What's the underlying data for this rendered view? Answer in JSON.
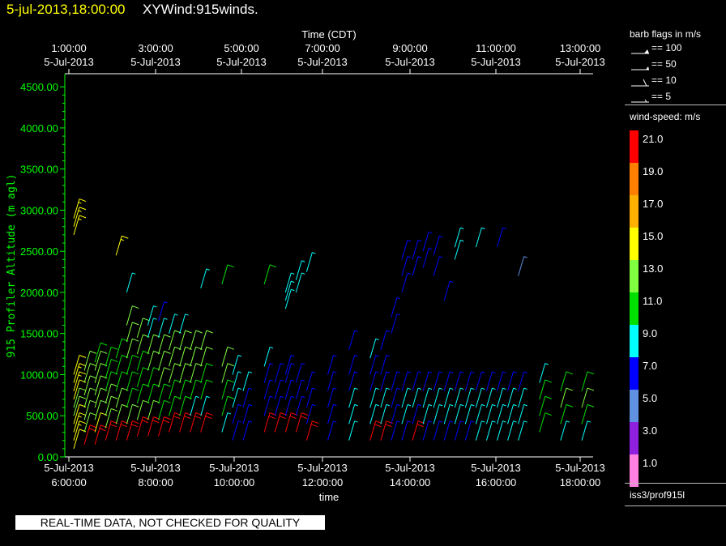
{
  "header": {
    "date_time": "5-jul-2013,18:00:00",
    "product": "XYWind:915winds."
  },
  "sidebar": {
    "barb_title": "barb flags in m/s",
    "barb_entries": [
      {
        "label": "== 100",
        "kind": "triple-flag"
      },
      {
        "label": "== 50",
        "kind": "flag"
      },
      {
        "label": "== 10",
        "kind": "full-barb"
      },
      {
        "label": "== 5",
        "kind": "half-barb"
      }
    ],
    "speed_title": "wind-speed: m/s",
    "speed_scale": [
      {
        "label": "21.0",
        "color": "#ff0000"
      },
      {
        "label": "19.0",
        "color": "#ff8000"
      },
      {
        "label": "17.0",
        "color": "#ffb000"
      },
      {
        "label": "15.0",
        "color": "#ffff00"
      },
      {
        "label": "13.0",
        "color": "#80ff40"
      },
      {
        "label": "11.0",
        "color": "#00e000"
      },
      {
        "label": "9.0",
        "color": "#00ffff"
      },
      {
        "label": "7.0",
        "color": "#0000ff"
      },
      {
        "label": "5.0",
        "color": "#6090e0"
      },
      {
        "label": "3.0",
        "color": "#9020e0"
      },
      {
        "label": "1.0",
        "color": "#ff80e0"
      }
    ],
    "station": "iss3/prof915l"
  },
  "footer": {
    "qc_notice": "REAL-TIME DATA, NOT CHECKED FOR QUALITY"
  },
  "chart_data": {
    "type": "scatter",
    "title": "",
    "ylabel": "915 Profiler Altitude (m agl)",
    "xlabel_bottom": "time",
    "xlabel_top": "Time (CDT)",
    "ylim": [
      0,
      4600
    ],
    "y_ticks": [
      "0.00",
      "500.00",
      "1000.00",
      "1500.00",
      "2000.00",
      "2500.00",
      "3000.00",
      "3500.00",
      "4000.00",
      "4500.00"
    ],
    "x_ticks_bottom": [
      {
        "date": "5-Jul-2013",
        "time": "6:00:00"
      },
      {
        "date": "5-Jul-2013",
        "time": "8:00:00"
      },
      {
        "date": "5-Jul-2013",
        "time": "10:00:00"
      },
      {
        "date": "5-Jul-2013",
        "time": "12:00:00"
      },
      {
        "date": "5-Jul-2013",
        "time": "14:00:00"
      },
      {
        "date": "5-Jul-2013",
        "time": "16:00:00"
      },
      {
        "date": "5-Jul-2013",
        "time": "18:00:00"
      }
    ],
    "x_ticks_top": [
      {
        "time": "1:00:00",
        "date": "5-Jul-2013"
      },
      {
        "time": "3:00:00",
        "date": "5-Jul-2013"
      },
      {
        "time": "5:00:00",
        "date": "5-Jul-2013"
      },
      {
        "time": "7:00:00",
        "date": "5-Jul-2013"
      },
      {
        "time": "9:00:00",
        "date": "5-Jul-2013"
      },
      {
        "time": "11:00:00",
        "date": "5-Jul-2013"
      },
      {
        "time": "13:00:00",
        "date": "5-Jul-2013"
      }
    ],
    "xlim_hours_utc": [
      6,
      18
    ],
    "profiles": [
      {
        "t": 6.0,
        "alt": [
          100,
          200,
          300,
          400,
          500,
          600,
          700,
          800,
          900,
          1000
        ],
        "spd": [
          14,
          15,
          15,
          14,
          13,
          13,
          14,
          15,
          15,
          14
        ]
      },
      {
        "t": 6.0,
        "alt": [
          2700,
          2800,
          2900
        ],
        "spd": [
          15,
          15,
          15
        ]
      },
      {
        "t": 6.25,
        "alt": [
          150,
          300,
          450,
          600,
          750,
          900,
          1050
        ],
        "spd": [
          20,
          13,
          12,
          12,
          13,
          12,
          12
        ]
      },
      {
        "t": 6.5,
        "alt": [
          150,
          300,
          450,
          600,
          750,
          900,
          1050,
          1150
        ],
        "spd": [
          20,
          14,
          13,
          12,
          12,
          12,
          12,
          11
        ]
      },
      {
        "t": 6.75,
        "alt": [
          200,
          350,
          500,
          650,
          800,
          950,
          1100
        ],
        "spd": [
          20,
          13,
          12,
          12,
          11,
          11,
          11
        ]
      },
      {
        "t": 7.0,
        "alt": [
          200,
          400,
          600,
          800,
          1000,
          1200
        ],
        "spd": [
          20,
          12,
          12,
          11,
          11,
          11
        ]
      },
      {
        "t": 7.0,
        "alt": [
          2450
        ],
        "spd": [
          15
        ]
      },
      {
        "t": 7.25,
        "alt": [
          200,
          400,
          600,
          800,
          1000,
          1200,
          1400,
          1600
        ],
        "spd": [
          20,
          12,
          11,
          11,
          11,
          12,
          12,
          12
        ]
      },
      {
        "t": 7.25,
        "alt": [
          2000
        ],
        "spd": [
          9
        ]
      },
      {
        "t": 7.5,
        "alt": [
          250,
          450,
          650,
          850,
          1050,
          1250,
          1450
        ],
        "spd": [
          20,
          12,
          11,
          11,
          11,
          12,
          12
        ]
      },
      {
        "t": 7.75,
        "alt": [
          250,
          450,
          650,
          850,
          1050,
          1250,
          1450,
          1600
        ],
        "spd": [
          20,
          12,
          11,
          11,
          12,
          12,
          9,
          9
        ]
      },
      {
        "t": 8.0,
        "alt": [
          250,
          450,
          650,
          850,
          1050,
          1250,
          1450,
          1650
        ],
        "spd": [
          20,
          11,
          11,
          12,
          12,
          12,
          8,
          7
        ]
      },
      {
        "t": 8.25,
        "alt": [
          300,
          500,
          700,
          900,
          1100,
          1300,
          1500
        ],
        "spd": [
          20,
          11,
          11,
          12,
          12,
          12,
          9
        ]
      },
      {
        "t": 8.5,
        "alt": [
          300,
          500,
          700,
          900,
          1100,
          1300,
          1500
        ],
        "spd": [
          20,
          11,
          11,
          12,
          12,
          12,
          9
        ]
      },
      {
        "t": 8.75,
        "alt": [
          300,
          500,
          700,
          900,
          1100,
          1300
        ],
        "spd": [
          20,
          9,
          11,
          12,
          12,
          13
        ]
      },
      {
        "t": 9.0,
        "alt": [
          300,
          500,
          700,
          900,
          1100,
          1300
        ],
        "spd": [
          20,
          9,
          11,
          11,
          12,
          13
        ]
      },
      {
        "t": 9.0,
        "alt": [
          2050
        ],
        "spd": [
          9
        ]
      },
      {
        "t": 9.5,
        "alt": [
          300,
          500,
          700,
          900,
          1100
        ],
        "spd": [
          9,
          11,
          11,
          12,
          12
        ]
      },
      {
        "t": 9.5,
        "alt": [
          2100
        ],
        "spd": [
          11
        ]
      },
      {
        "t": 9.75,
        "alt": [
          200,
          400,
          600,
          800,
          1000
        ],
        "spd": [
          7,
          7,
          8,
          9,
          9
        ]
      },
      {
        "t": 10.0,
        "alt": [
          200,
          400,
          600,
          800
        ],
        "spd": [
          7,
          7,
          7,
          8
        ]
      },
      {
        "t": 10.5,
        "alt": [
          300,
          500,
          700,
          900,
          1100
        ],
        "spd": [
          20,
          7,
          7,
          7,
          9
        ]
      },
      {
        "t": 10.5,
        "alt": [
          2100
        ],
        "spd": [
          11
        ]
      },
      {
        "t": 10.75,
        "alt": [
          300,
          500,
          700,
          900
        ],
        "spd": [
          20,
          7,
          7,
          7
        ]
      },
      {
        "t": 11.0,
        "alt": [
          300,
          500,
          700,
          900,
          1000
        ],
        "spd": [
          20,
          7,
          7,
          7,
          7
        ]
      },
      {
        "t": 11.0,
        "alt": [
          1800,
          1900,
          2000
        ],
        "spd": [
          9,
          9,
          9
        ]
      },
      {
        "t": 11.25,
        "alt": [
          300,
          500,
          700,
          900
        ],
        "spd": [
          20,
          7,
          7,
          7
        ]
      },
      {
        "t": 11.25,
        "alt": [
          2000,
          2150
        ],
        "spd": [
          9,
          9
        ]
      },
      {
        "t": 11.5,
        "alt": [
          200,
          400,
          600,
          800
        ],
        "spd": [
          20,
          7,
          7,
          7
        ]
      },
      {
        "t": 11.5,
        "alt": [
          2250
        ],
        "spd": [
          9
        ]
      },
      {
        "t": 12.0,
        "alt": [
          200,
          400,
          600,
          800,
          1000
        ],
        "spd": [
          7,
          7,
          7,
          7,
          7
        ]
      },
      {
        "t": 12.5,
        "alt": [
          200,
          400,
          600,
          800,
          1000,
          1300
        ],
        "spd": [
          8,
          8,
          8,
          7,
          7,
          7
        ]
      },
      {
        "t": 13.0,
        "alt": [
          200,
          400,
          600,
          800,
          1000,
          1200
        ],
        "spd": [
          20,
          8,
          8,
          7,
          7,
          9
        ]
      },
      {
        "t": 13.25,
        "alt": [
          200,
          400,
          600,
          800,
          1000,
          1300
        ],
        "spd": [
          20,
          8,
          8,
          7,
          7,
          7
        ]
      },
      {
        "t": 13.5,
        "alt": [
          200,
          400,
          600,
          800,
          1500,
          1700
        ],
        "spd": [
          7,
          7,
          7,
          7,
          7,
          7
        ]
      },
      {
        "t": 13.75,
        "alt": [
          200,
          400,
          600,
          800,
          2000,
          2200,
          2400
        ],
        "spd": [
          7,
          8,
          8,
          7,
          7,
          7,
          7
        ]
      },
      {
        "t": 14.0,
        "alt": [
          200,
          400,
          600,
          800,
          2200,
          2400
        ],
        "spd": [
          20,
          7,
          8,
          7,
          7,
          7
        ]
      },
      {
        "t": 14.25,
        "alt": [
          200,
          400,
          600,
          800,
          2300,
          2500
        ],
        "spd": [
          7,
          8,
          8,
          7,
          7,
          7
        ]
      },
      {
        "t": 14.5,
        "alt": [
          200,
          400,
          600,
          800,
          2200,
          2450
        ],
        "spd": [
          7,
          8,
          8,
          7,
          7,
          7
        ]
      },
      {
        "t": 14.75,
        "alt": [
          200,
          400,
          600,
          800,
          1900
        ],
        "spd": [
          7,
          8,
          8,
          7,
          7
        ]
      },
      {
        "t": 15.0,
        "alt": [
          200,
          400,
          600,
          800,
          2400,
          2550
        ],
        "spd": [
          7,
          9,
          8,
          7,
          9,
          9
        ]
      },
      {
        "t": 15.25,
        "alt": [
          200,
          400,
          600,
          800
        ],
        "spd": [
          7,
          9,
          8,
          7
        ]
      },
      {
        "t": 15.5,
        "alt": [
          200,
          400,
          600,
          800,
          2550
        ],
        "spd": [
          8,
          9,
          8,
          7,
          9
        ]
      },
      {
        "t": 15.75,
        "alt": [
          200,
          400,
          600,
          800
        ],
        "spd": [
          8,
          9,
          8,
          7
        ]
      },
      {
        "t": 16.0,
        "alt": [
          200,
          400,
          600,
          800,
          2550
        ],
        "spd": [
          8,
          9,
          8,
          7,
          7
        ]
      },
      {
        "t": 16.25,
        "alt": [
          200,
          400,
          600,
          800
        ],
        "spd": [
          8,
          9,
          8,
          7
        ]
      },
      {
        "t": 16.5,
        "alt": [
          200,
          400,
          600,
          800,
          2200
        ],
        "spd": [
          8,
          9,
          9,
          7,
          5
        ]
      },
      {
        "t": 17.0,
        "alt": [
          300,
          500,
          700,
          900
        ],
        "spd": [
          10,
          11,
          11,
          9
        ]
      },
      {
        "t": 17.5,
        "alt": [
          200,
          400,
          600,
          800
        ],
        "spd": [
          9,
          11,
          12,
          11
        ]
      },
      {
        "t": 18.0,
        "alt": [
          200,
          400,
          600,
          800
        ],
        "spd": [
          9,
          11,
          12,
          11
        ]
      }
    ]
  }
}
